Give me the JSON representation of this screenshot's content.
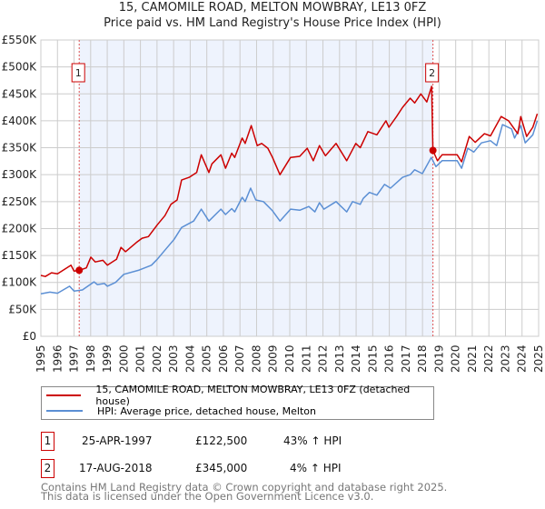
{
  "title": "15, CAMOMILE ROAD, MELTON MOWBRAY, LE13 0FZ",
  "subtitle": "Price paid vs. HM Land Registry's House Price Index (HPI)",
  "legend": [
    {
      "label": "15, CAMOMILE ROAD, MELTON MOWBRAY, LE13 0FZ (detached house)",
      "color": "#cc0000"
    },
    {
      "label": "HPI: Average price, detached house, Melton",
      "color": "#5b8fd4"
    }
  ],
  "sales": [
    {
      "num": "1",
      "date": "25-APR-1997",
      "price": "£122,500",
      "hpi": "43% ↑ HPI",
      "year": 1997.31,
      "value": 122.5
    },
    {
      "num": "2",
      "date": "17-AUG-2018",
      "price": "£345,000",
      "hpi": "4% ↑ HPI",
      "year": 2018.63,
      "value": 345
    }
  ],
  "footer": {
    "line1": "Contains HM Land Registry data © Crown copyright and database right 2025.",
    "line2": "This data is licensed under the Open Government Licence v3.0."
  },
  "chart_data": {
    "type": "line",
    "title": "15, CAMOMILE ROAD, MELTON MOWBRAY, LE13 0FZ",
    "subtitle": "Price paid vs. HM Land Registry's House Price Index (HPI)",
    "xlim": [
      1995,
      2025
    ],
    "ylim": [
      0,
      550
    ],
    "yunit": "thousand GBP",
    "yticks": [
      0,
      50,
      100,
      150,
      200,
      250,
      300,
      350,
      400,
      450,
      500,
      550
    ],
    "ytick_labels": [
      "£0",
      "£50K",
      "£100K",
      "£150K",
      "£200K",
      "£250K",
      "£300K",
      "£350K",
      "£400K",
      "£450K",
      "£500K",
      "£550K"
    ],
    "xticks": [
      "1995",
      "1996",
      "1997",
      "1998",
      "1999",
      "2000",
      "2001",
      "2002",
      "2003",
      "2004",
      "2005",
      "2006",
      "2007",
      "2008",
      "2009",
      "2010",
      "2011",
      "2012",
      "2013",
      "2014",
      "2015",
      "2016",
      "2017",
      "2018",
      "2019",
      "2020",
      "2021",
      "2022",
      "2023",
      "2024",
      "2025"
    ],
    "grid": true,
    "shaded_range": [
      1997.31,
      2018.63
    ],
    "series": [
      {
        "name": "15, CAMOMILE ROAD, MELTON MOWBRAY, LE13 0FZ (detached house)",
        "color": "#cc0000",
        "points": [
          [
            1995.0,
            113
          ],
          [
            1995.27,
            111
          ],
          [
            1995.64,
            118
          ],
          [
            1996.0,
            116
          ],
          [
            1996.82,
            132
          ],
          [
            1997.0,
            121
          ],
          [
            1997.31,
            122.5
          ],
          [
            1997.74,
            127
          ],
          [
            1998.01,
            147
          ],
          [
            1998.28,
            138
          ],
          [
            1998.74,
            141
          ],
          [
            1999.01,
            132
          ],
          [
            1999.56,
            143
          ],
          [
            1999.83,
            165
          ],
          [
            2000.1,
            157
          ],
          [
            2000.75,
            174
          ],
          [
            2001.1,
            182
          ],
          [
            2001.48,
            185
          ],
          [
            2002.02,
            207
          ],
          [
            2002.48,
            224
          ],
          [
            2002.84,
            245
          ],
          [
            2003.21,
            253
          ],
          [
            2003.48,
            290
          ],
          [
            2003.94,
            295
          ],
          [
            2004.39,
            304
          ],
          [
            2004.67,
            337
          ],
          [
            2005.13,
            304
          ],
          [
            2005.31,
            320
          ],
          [
            2005.85,
            337
          ],
          [
            2006.13,
            312
          ],
          [
            2006.5,
            340
          ],
          [
            2006.68,
            332
          ],
          [
            2007.13,
            368
          ],
          [
            2007.31,
            358
          ],
          [
            2007.68,
            391
          ],
          [
            2008.04,
            354
          ],
          [
            2008.31,
            358
          ],
          [
            2008.68,
            349
          ],
          [
            2008.96,
            332
          ],
          [
            2009.41,
            300
          ],
          [
            2010.05,
            332
          ],
          [
            2010.6,
            334
          ],
          [
            2011.05,
            349
          ],
          [
            2011.42,
            326
          ],
          [
            2011.79,
            354
          ],
          [
            2012.15,
            335
          ],
          [
            2012.79,
            358
          ],
          [
            2013.43,
            326
          ],
          [
            2013.98,
            358
          ],
          [
            2014.25,
            350
          ],
          [
            2014.71,
            380
          ],
          [
            2015.25,
            374
          ],
          [
            2015.8,
            400
          ],
          [
            2015.98,
            388
          ],
          [
            2016.44,
            408
          ],
          [
            2016.8,
            425
          ],
          [
            2017.26,
            442
          ],
          [
            2017.53,
            433
          ],
          [
            2017.9,
            450
          ],
          [
            2018.26,
            435
          ],
          [
            2018.55,
            464
          ],
          [
            2018.63,
            345
          ],
          [
            2018.9,
            326
          ],
          [
            2019.18,
            337
          ],
          [
            2020.09,
            337
          ],
          [
            2020.36,
            324
          ],
          [
            2020.82,
            371
          ],
          [
            2021.18,
            360
          ],
          [
            2021.73,
            376
          ],
          [
            2022.1,
            372
          ],
          [
            2022.74,
            408
          ],
          [
            2023.19,
            400
          ],
          [
            2023.74,
            376
          ],
          [
            2023.92,
            408
          ],
          [
            2024.28,
            371
          ],
          [
            2024.65,
            388
          ],
          [
            2024.92,
            413
          ]
        ]
      },
      {
        "name": "HPI: Average price, detached house, Melton",
        "color": "#5b8fd4",
        "points": [
          [
            1995.0,
            79
          ],
          [
            1995.55,
            82
          ],
          [
            1996.0,
            80
          ],
          [
            1996.73,
            93
          ],
          [
            1997.0,
            84
          ],
          [
            1997.5,
            86
          ],
          [
            1998.2,
            101
          ],
          [
            1998.4,
            96
          ],
          [
            1998.83,
            98
          ],
          [
            1999.01,
            93
          ],
          [
            1999.5,
            100
          ],
          [
            2000.0,
            115
          ],
          [
            2000.93,
            123
          ],
          [
            2001.66,
            132
          ],
          [
            2002.02,
            143
          ],
          [
            2002.48,
            160
          ],
          [
            2003.03,
            180
          ],
          [
            2003.48,
            202
          ],
          [
            2004.21,
            214
          ],
          [
            2004.67,
            236
          ],
          [
            2005.13,
            214
          ],
          [
            2005.85,
            236
          ],
          [
            2006.13,
            226
          ],
          [
            2006.5,
            237
          ],
          [
            2006.68,
            231
          ],
          [
            2007.13,
            258
          ],
          [
            2007.31,
            250
          ],
          [
            2007.64,
            275
          ],
          [
            2007.95,
            253
          ],
          [
            2008.41,
            250
          ],
          [
            2008.96,
            233
          ],
          [
            2009.41,
            214
          ],
          [
            2010.05,
            236
          ],
          [
            2010.6,
            234
          ],
          [
            2011.15,
            241
          ],
          [
            2011.51,
            231
          ],
          [
            2011.79,
            248
          ],
          [
            2012.06,
            236
          ],
          [
            2012.79,
            250
          ],
          [
            2013.43,
            231
          ],
          [
            2013.79,
            250
          ],
          [
            2014.25,
            245
          ],
          [
            2014.43,
            256
          ],
          [
            2014.8,
            267
          ],
          [
            2015.25,
            262
          ],
          [
            2015.71,
            282
          ],
          [
            2016.07,
            275
          ],
          [
            2016.8,
            295
          ],
          [
            2017.26,
            300
          ],
          [
            2017.53,
            309
          ],
          [
            2017.99,
            302
          ],
          [
            2018.53,
            332
          ],
          [
            2018.81,
            315
          ],
          [
            2019.18,
            326
          ],
          [
            2020.09,
            326
          ],
          [
            2020.36,
            312
          ],
          [
            2020.73,
            349
          ],
          [
            2021.09,
            342
          ],
          [
            2021.55,
            359
          ],
          [
            2022.1,
            363
          ],
          [
            2022.47,
            354
          ],
          [
            2022.82,
            393
          ],
          [
            2023.37,
            385
          ],
          [
            2023.55,
            368
          ],
          [
            2023.92,
            391
          ],
          [
            2024.19,
            359
          ],
          [
            2024.65,
            374
          ],
          [
            2024.92,
            400
          ]
        ]
      }
    ]
  }
}
